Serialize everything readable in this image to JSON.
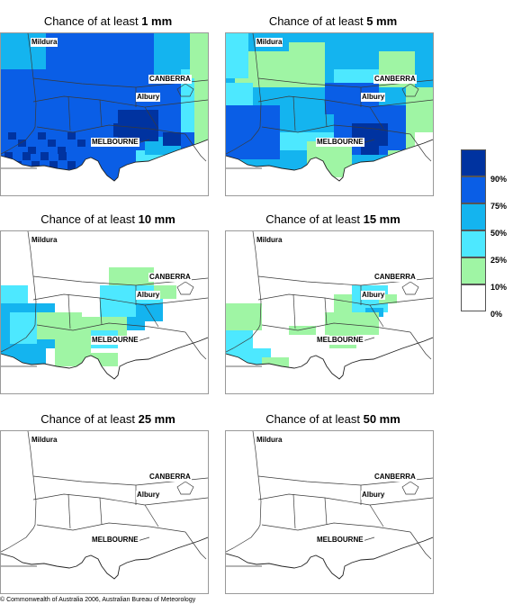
{
  "panels": [
    {
      "prefix": "Chance of at least ",
      "amount": "1 mm",
      "level": 0
    },
    {
      "prefix": "Chance of at least ",
      "amount": "5 mm",
      "level": 1
    },
    {
      "prefix": "Chance of at least ",
      "amount": "10 mm",
      "level": 2
    },
    {
      "prefix": "Chance of at least ",
      "amount": "15 mm",
      "level": 3
    },
    {
      "prefix": "Chance of at least ",
      "amount": "25 mm",
      "level": 4
    },
    {
      "prefix": "Chance of at least ",
      "amount": "50 mm",
      "level": 5
    }
  ],
  "cities": {
    "mildura": "Mildura",
    "canberra": "CANBERRA",
    "albury": "Albury",
    "melbourne": "MELBOURNE"
  },
  "legend": {
    "labels": [
      "90%",
      "75%",
      "50%",
      "25%",
      "10%",
      "0%"
    ],
    "colors": [
      "#0033a0",
      "#0a5ee6",
      "#14b4ef",
      "#4de8ff",
      "#9ff5a4",
      "#ffffff"
    ]
  },
  "copyright": "© Commonwealth of Australia 2006, Australian Bureau of Meteorology"
}
